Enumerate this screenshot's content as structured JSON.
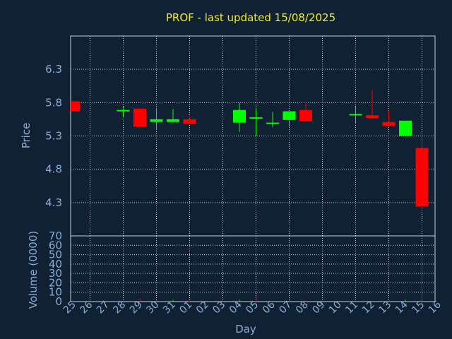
{
  "chart_data": [
    {
      "type": "candlestick",
      "title": "PROF - last updated 15/08/2025",
      "xlabel": "Day",
      "ylabel": "Price",
      "ylim": [
        3.8,
        6.8
      ],
      "yticks": [
        "6.3",
        "5.8",
        "5.3",
        "4.8",
        "4.3"
      ],
      "ytick_values": [
        6.3,
        5.8,
        5.3,
        4.8,
        4.3
      ],
      "grid": true,
      "categories": [
        "25",
        "26",
        "27",
        "28",
        "29",
        "30",
        "31",
        "01",
        "02",
        "03",
        "04",
        "05",
        "06",
        "07",
        "08",
        "09",
        "10",
        "11",
        "12",
        "13",
        "14",
        "15",
        "16"
      ],
      "candles": [
        {
          "day": "25",
          "open": 5.82,
          "close": 5.67,
          "high": 5.82,
          "low": 5.67
        },
        {
          "day": "28",
          "open": 5.67,
          "close": 5.69,
          "high": 5.74,
          "low": 5.59
        },
        {
          "day": "29",
          "open": 5.71,
          "close": 5.44,
          "high": 5.71,
          "low": 5.44
        },
        {
          "day": "30",
          "open": 5.51,
          "close": 5.55,
          "high": 5.72,
          "low": 5.39
        },
        {
          "day": "31",
          "open": 5.51,
          "close": 5.55,
          "high": 5.7,
          "low": 5.51
        },
        {
          "day": "01",
          "open": 5.55,
          "close": 5.48,
          "high": 5.59,
          "low": 5.48
        },
        {
          "day": "04",
          "open": 5.5,
          "close": 5.69,
          "high": 5.8,
          "low": 5.36
        },
        {
          "day": "05",
          "open": 5.58,
          "close": 5.58,
          "high": 5.71,
          "low": 5.3
        },
        {
          "day": "06",
          "open": 5.5,
          "close": 5.5,
          "high": 5.66,
          "low": 5.43
        },
        {
          "day": "07",
          "open": 5.54,
          "close": 5.67,
          "high": 5.67,
          "low": 5.44
        },
        {
          "day": "08",
          "open": 5.69,
          "close": 5.52,
          "high": 5.8,
          "low": 5.52
        },
        {
          "day": "11",
          "open": 5.61,
          "close": 5.63,
          "high": 5.74,
          "low": 5.48
        },
        {
          "day": "12",
          "open": 5.61,
          "close": 5.57,
          "high": 5.98,
          "low": 5.57
        },
        {
          "day": "13",
          "open": 5.51,
          "close": 5.45,
          "high": 5.68,
          "low": 5.45
        },
        {
          "day": "14",
          "open": 5.3,
          "close": 5.53,
          "high": 5.53,
          "low": 5.3
        },
        {
          "day": "15",
          "open": 5.12,
          "close": 4.24,
          "high": 5.3,
          "low": 4.24
        }
      ]
    },
    {
      "type": "bar",
      "xlabel": "Day",
      "ylabel": "Volume (0000)",
      "ylim": [
        0,
        70
      ],
      "yticks": [
        "70",
        "60",
        "50",
        "40",
        "30",
        "20",
        "10",
        "0"
      ],
      "ytick_values": [
        70,
        60,
        50,
        40,
        30,
        20,
        10,
        0
      ],
      "grid": true,
      "categories": [
        "25",
        "26",
        "27",
        "28",
        "29",
        "30",
        "31",
        "01",
        "02",
        "03",
        "04",
        "05",
        "06",
        "07",
        "08",
        "09",
        "10",
        "11",
        "12",
        "13",
        "14",
        "15",
        "16"
      ],
      "volumes": [
        {
          "day": "29",
          "value": 3,
          "direction": "down"
        },
        {
          "day": "31",
          "value": 2,
          "direction": "up"
        },
        {
          "day": "01",
          "value": 1,
          "direction": "down"
        },
        {
          "day": "04",
          "value": 2,
          "direction": "up"
        },
        {
          "day": "05",
          "value": 1,
          "direction": "down"
        },
        {
          "day": "08",
          "value": 1,
          "direction": "down"
        },
        {
          "day": "14",
          "value": 2,
          "direction": "up"
        },
        {
          "day": "15",
          "value": 61,
          "direction": "down"
        }
      ]
    }
  ],
  "colors": {
    "background": "#0f2133",
    "grid": "#c7d0dc",
    "axis_text": "#8aaed6",
    "title": "#f5ea2a",
    "up": "#00ff00",
    "down": "#ff0000"
  }
}
